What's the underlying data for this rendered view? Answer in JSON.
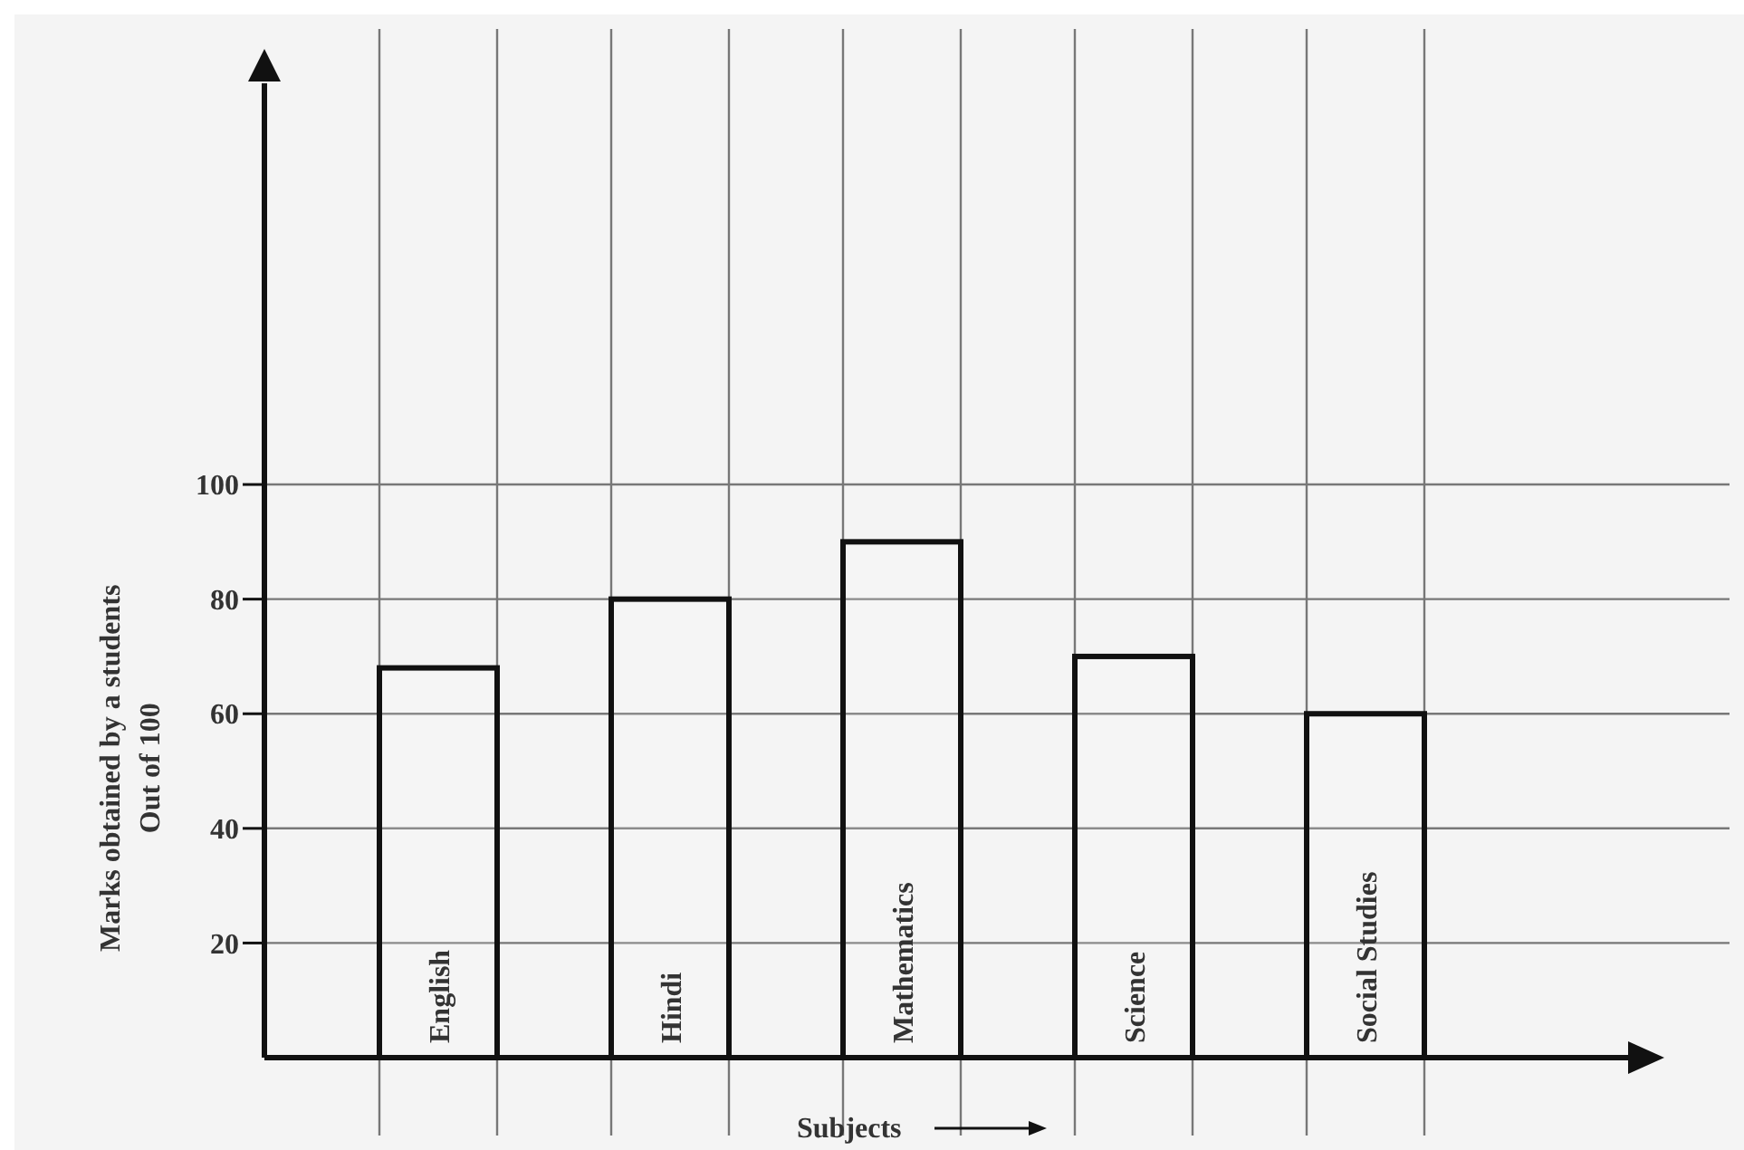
{
  "chart_data": {
    "type": "bar",
    "xlabel": "Subjects",
    "ylabel": "Marks obtained by a students\nOut of 100",
    "categories": [
      "English",
      "Hindi",
      "Mathematics",
      "Science",
      "Social Studies"
    ],
    "values": [
      68,
      80,
      90,
      70,
      60
    ],
    "color": "#ffffff",
    "ylim": [
      0,
      170
    ],
    "yticks": [
      20,
      40,
      60,
      80,
      100
    ],
    "grid": true
  }
}
